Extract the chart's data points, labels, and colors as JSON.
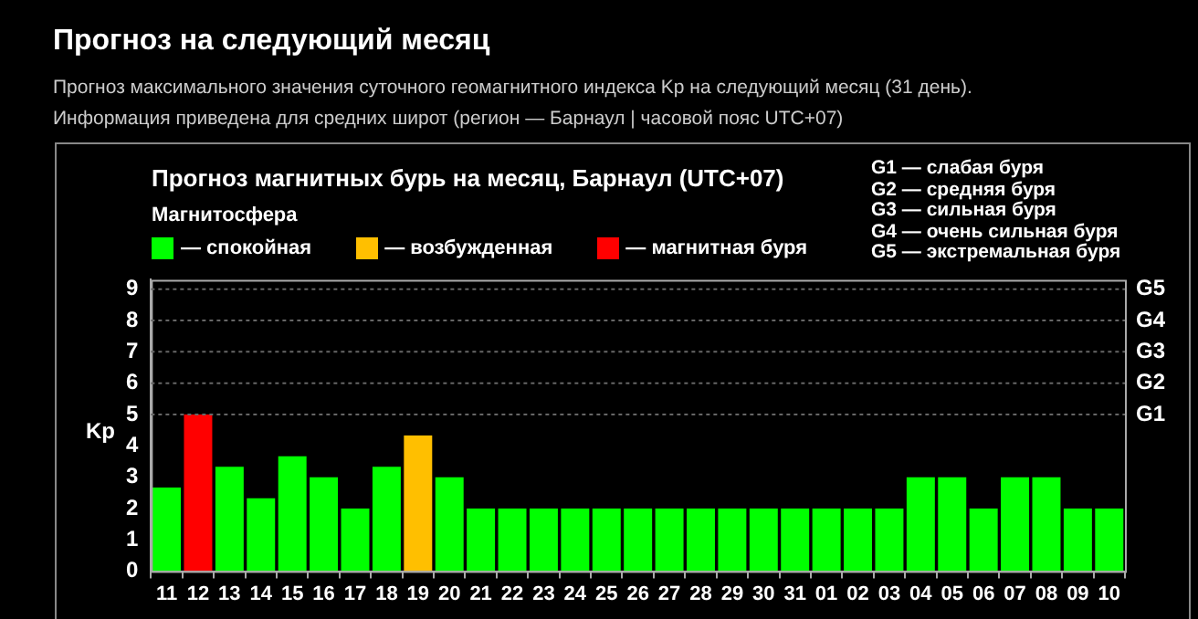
{
  "chart_data": {
    "type": "bar",
    "title": "Прогноз магнитных бурь на месяц, Барнаул (UTC+07)",
    "ylabel": "Kp",
    "legend_title": "Магнитосфера",
    "legend": "top left",
    "annotations": [
      "Прогноз на следующий месяц",
      "Прогноз максимального значения суточного геомагнитного индекса Kp на следующий месяц (31 день).",
      "Информация приведена для средних широт (регион — Барнаул | часовой пояс UTC+07)",
      "G1 — слабая буря",
      "G2 — средняя буря",
      "G3 — сильная буря",
      "G4 — очень сильная буря",
      "G5 — экстремальная буря"
    ],
    "categories": [
      "11",
      "12",
      "13",
      "14",
      "15",
      "16",
      "17",
      "18",
      "19",
      "20",
      "21",
      "22",
      "23",
      "24",
      "25",
      "26",
      "27",
      "28",
      "29",
      "30",
      "31",
      "01",
      "02",
      "03",
      "04",
      "05",
      "06",
      "07",
      "08",
      "09",
      "10"
    ],
    "series": [
      {
        "name": "— спокойная",
        "color": "#00ff00",
        "values": [
          2.67,
          null,
          3.33,
          2.33,
          3.67,
          3,
          2,
          3.33,
          null,
          3,
          2,
          2,
          2,
          2,
          2,
          2,
          2,
          2,
          2,
          2,
          2,
          2,
          2,
          2,
          3,
          3,
          2,
          3,
          3,
          2,
          2
        ]
      },
      {
        "name": "— возбужденная",
        "color": "#ffbf00",
        "values": [
          null,
          null,
          null,
          null,
          null,
          null,
          null,
          null,
          4.33,
          null,
          null,
          null,
          null,
          null,
          null,
          null,
          null,
          null,
          null,
          null,
          null,
          null,
          null,
          null,
          null,
          null,
          null,
          null,
          null,
          null,
          null
        ]
      },
      {
        "name": "— магнитная буря",
        "color": "#ff0000",
        "values": [
          null,
          5,
          null,
          null,
          null,
          null,
          null,
          null,
          null,
          null,
          null,
          null,
          null,
          null,
          null,
          null,
          null,
          null,
          null,
          null,
          null,
          null,
          null,
          null,
          null,
          null,
          null,
          null,
          null,
          null,
          null
        ]
      }
    ],
    "ylim": [
      0,
      9.3
    ],
    "yticks": [
      0,
      1,
      2,
      3,
      4,
      5,
      6,
      7,
      8,
      9
    ],
    "ref_lines": [
      {
        "axis": "y",
        "value": 5,
        "label": "G1",
        "color": "#666666",
        "line_style": "dotted"
      },
      {
        "axis": "y",
        "value": 6,
        "label": "G2",
        "color": "#666666",
        "line_style": "dotted"
      },
      {
        "axis": "y",
        "value": 7,
        "label": "G3",
        "color": "#666666",
        "line_style": "dotted"
      },
      {
        "axis": "y",
        "value": 8,
        "label": "G4",
        "color": "#666666",
        "line_style": "dotted"
      },
      {
        "axis": "y",
        "value": 9,
        "label": "G5",
        "color": "#666666",
        "line_style": "dotted"
      }
    ]
  }
}
